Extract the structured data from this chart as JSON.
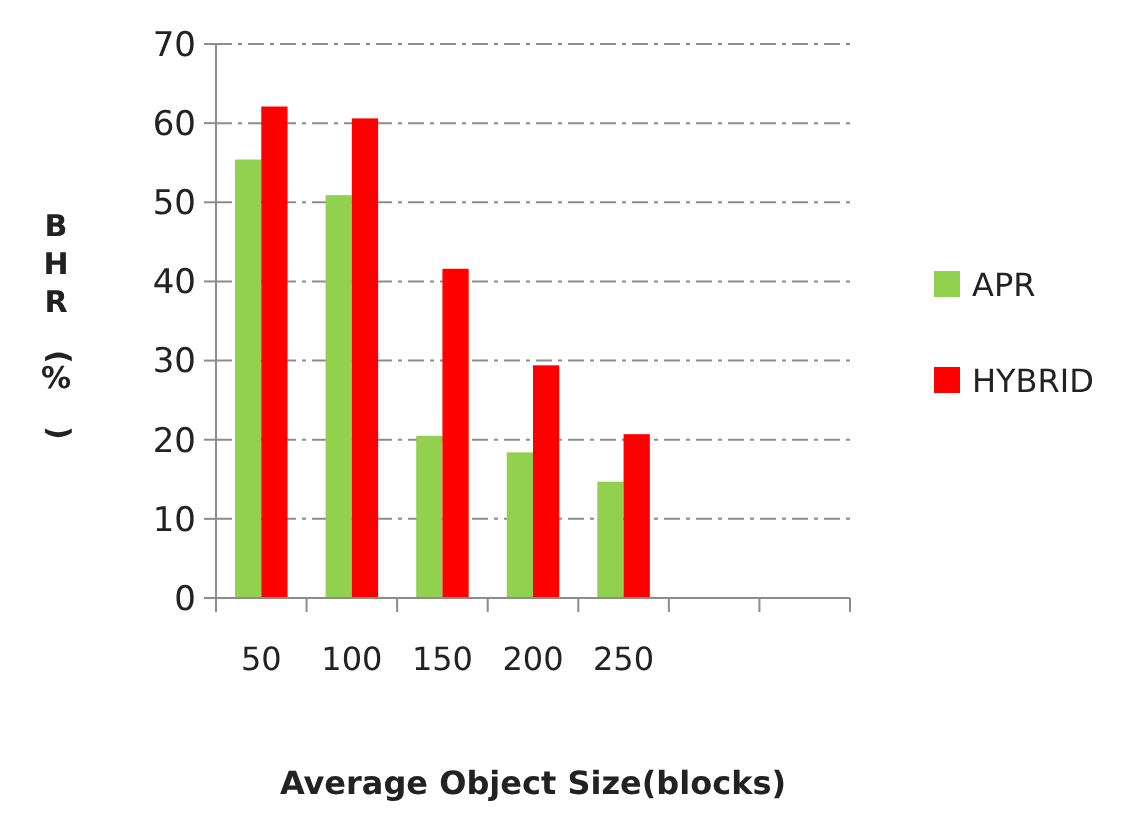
{
  "chart_data": {
    "type": "bar",
    "xlabel": "Average Object Size(blocks)",
    "ylabel": "BHR(%)",
    "categories": [
      "50",
      "100",
      "150",
      "200",
      "250",
      null,
      null
    ],
    "series": [
      {
        "name": "APR",
        "color": "#92d050",
        "values": [
          55.4,
          50.9,
          20.5,
          18.4,
          14.7,
          null,
          null
        ]
      },
      {
        "name": "HYBRID",
        "color": "#ff0000",
        "values": [
          62.1,
          60.6,
          41.6,
          29.4,
          20.7,
          null,
          null
        ]
      }
    ],
    "ylim": [
      0,
      70
    ],
    "yticks": [
      0,
      10,
      20,
      30,
      40,
      50,
      60,
      70
    ],
    "grid": "y",
    "legend": "right"
  }
}
